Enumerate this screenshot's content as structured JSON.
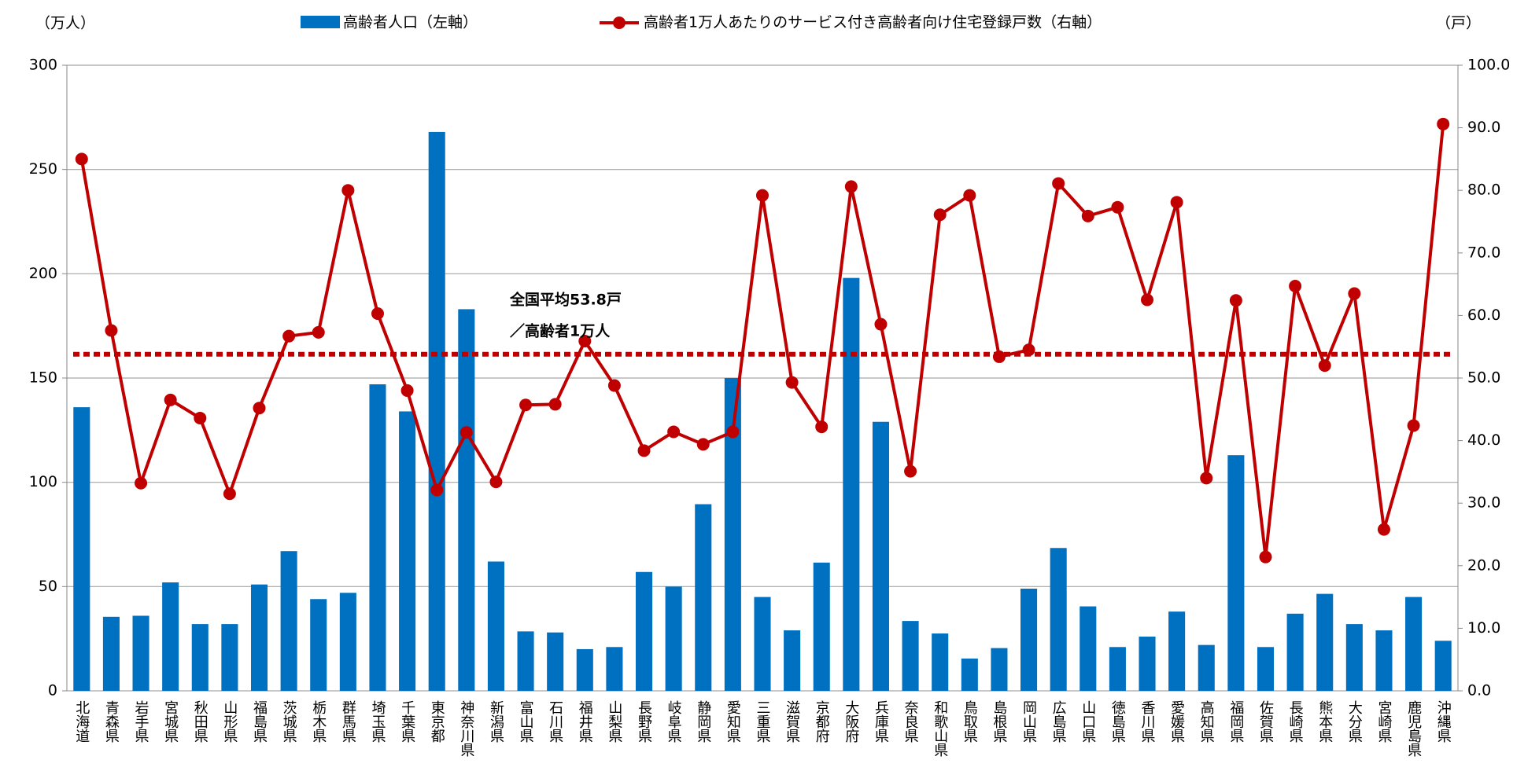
{
  "chart_data": {
    "type": "bar-line",
    "y_unit": "（万人）",
    "y2_unit": "（戸）",
    "categories": [
      "北海道",
      "青森県",
      "岩手県",
      "宮城県",
      "秋田県",
      "山形県",
      "福島県",
      "茨城県",
      "栃木県",
      "群馬県",
      "埼玉県",
      "千葉県",
      "東京都",
      "神奈川県",
      "新潟県",
      "富山県",
      "石川県",
      "福井県",
      "山梨県",
      "長野県",
      "岐阜県",
      "静岡県",
      "愛知県",
      "三重県",
      "滋賀県",
      "京都府",
      "大阪府",
      "兵庫県",
      "奈良県",
      "和歌山県",
      "鳥取県",
      "島根県",
      "岡山県",
      "広島県",
      "山口県",
      "徳島県",
      "香川県",
      "愛媛県",
      "高知県",
      "福岡県",
      "佐賀県",
      "長崎県",
      "熊本県",
      "大分県",
      "宮崎県",
      "鹿児島県",
      "沖縄県"
    ],
    "series": [
      {
        "name": "高齢者人口（左軸）",
        "type": "bar",
        "color": "#0070c0",
        "axis": "y",
        "values": [
          136,
          35.5,
          36,
          52,
          32,
          32,
          51,
          67,
          44,
          47,
          147,
          134,
          268,
          183,
          62,
          28.5,
          28,
          20,
          21,
          57,
          50,
          89.5,
          150,
          45,
          29,
          61.5,
          198,
          129,
          33.5,
          27.5,
          15.5,
          20.5,
          49,
          68.5,
          40.5,
          21,
          26,
          38,
          22,
          113,
          21,
          37,
          46.5,
          32,
          29,
          45,
          24
        ]
      },
      {
        "name": "高齢者1万人あたりのサービス付き高齢者向け住宅登録戸数（右軸）",
        "type": "line",
        "color": "#c00000",
        "axis": "y2",
        "values": [
          85.0,
          57.6,
          33.2,
          46.5,
          43.6,
          31.5,
          45.2,
          56.7,
          57.3,
          80.0,
          60.3,
          48.0,
          32.1,
          41.3,
          33.4,
          45.7,
          45.8,
          55.9,
          48.8,
          38.4,
          41.4,
          39.4,
          41.4,
          79.2,
          49.3,
          42.2,
          80.6,
          58.6,
          35.1,
          76.1,
          79.2,
          53.4,
          54.5,
          81.1,
          75.9,
          77.3,
          62.5,
          78.1,
          34.0,
          62.4,
          21.4,
          64.7,
          52.0,
          63.5,
          25.8,
          42.4,
          90.6
        ]
      }
    ],
    "reference_line": {
      "value": 53.8,
      "axis": "y2",
      "color": "#c00000",
      "label": [
        "全国平均53.8戸",
        "／高齢者1万人"
      ]
    },
    "ylim": [
      0,
      300
    ],
    "yticks": [
      0,
      50,
      100,
      150,
      200,
      250,
      300
    ],
    "y2lim": [
      0,
      100
    ],
    "y2ticks": [
      {
        "value": 0,
        "label": "0.0"
      },
      {
        "value": 10,
        "label": "10.0"
      },
      {
        "value": 20,
        "label": "20.0"
      },
      {
        "value": 30,
        "label": "30.0"
      },
      {
        "value": 40,
        "label": "40.0"
      },
      {
        "value": 50,
        "label": "50.0"
      },
      {
        "value": 60,
        "label": "60.0"
      },
      {
        "value": 70,
        "label": "70.0"
      },
      {
        "value": 80,
        "label": "80.0"
      },
      {
        "value": 90,
        "label": "90.0"
      },
      {
        "value": 100,
        "label": "100.0"
      }
    ],
    "grid": true
  }
}
